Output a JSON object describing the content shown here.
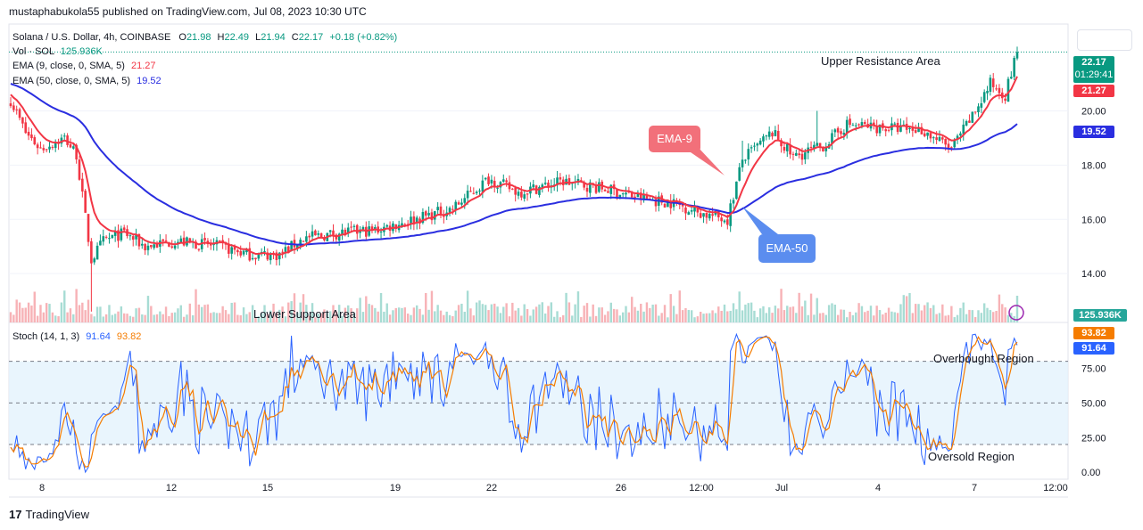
{
  "header": {
    "published_line": "mustaphabukola55 published on TradingView.com, Jul 08, 2023 10:30 UTC"
  },
  "legend": {
    "symbol": "Solana / U.S. Dollar, 4h, COINBASE",
    "o_label": "O",
    "o": "21.98",
    "h_label": "H",
    "h": "22.49",
    "l_label": "L",
    "l": "21.94",
    "c_label": "C",
    "c": "22.17",
    "change": "+0.18 (+0.82%)",
    "vol_label": "Vol · SOL",
    "vol": "125.936K",
    "ema9_label": "EMA (9, close, 0, SMA, 5)",
    "ema9": "21.27",
    "ema50_label": "EMA (50, close, 0, SMA, 5)",
    "ema50": "19.52",
    "stoch_label": "Stoch (14, 1, 3)",
    "stoch_k": "91.64",
    "stoch_d": "93.82"
  },
  "badges": {
    "price": "22.17",
    "countdown": "01:29:41",
    "ema9": "21.27",
    "ema50": "19.52",
    "volume": "125.936K",
    "stoch_d": "93.82",
    "stoch_k": "91.64"
  },
  "annotations": {
    "upper_resistance": "Upper Resistance Area",
    "lower_support": "Lower Support Area",
    "ema9_callout": "EMA-9",
    "ema50_callout": "EMA-50",
    "overbought": "Overbought Region",
    "oversold": "Oversold Region"
  },
  "footer": {
    "brand": "TradingView"
  },
  "colors": {
    "up": "#089981",
    "down": "#f23645",
    "ema9": "#f23645",
    "ema50": "#2a2ee0",
    "stoch_k": "#2962ff",
    "stoch_d": "#f57c00",
    "band": "#e3f2fd"
  },
  "chart_data": {
    "type": "candlestick",
    "price_axis": {
      "ticks": [
        14.0,
        16.0,
        18.0,
        20.0
      ],
      "labels": [
        "14.00",
        "16.00",
        "18.00",
        "20.00"
      ],
      "range": [
        12.2,
        23.2
      ]
    },
    "time_axis": {
      "labels": [
        "8",
        "12",
        "15",
        "19",
        "22",
        "26",
        "12:00",
        "Jul",
        "4",
        "7",
        "12:00"
      ]
    },
    "stoch_axis": {
      "ticks": [
        0,
        25,
        50,
        75
      ],
      "labels": [
        "0.00",
        "25.00",
        "50.00",
        "75.00"
      ],
      "range": [
        -5,
        108
      ],
      "bands": [
        20,
        80
      ]
    },
    "close_anchors": [
      [
        0,
        20.4
      ],
      [
        5,
        19.2
      ],
      [
        10,
        18.6
      ],
      [
        18,
        19.0
      ],
      [
        22,
        18.4
      ],
      [
        27,
        14.5
      ],
      [
        31,
        15.2
      ],
      [
        38,
        15.5
      ],
      [
        45,
        15.0
      ],
      [
        55,
        15.2
      ],
      [
        70,
        15.0
      ],
      [
        80,
        14.7
      ],
      [
        90,
        14.7
      ],
      [
        98,
        15.3
      ],
      [
        110,
        15.5
      ],
      [
        122,
        15.6
      ],
      [
        135,
        16.0
      ],
      [
        148,
        16.4
      ],
      [
        160,
        17.5
      ],
      [
        170,
        17.0
      ],
      [
        185,
        17.4
      ],
      [
        200,
        17.1
      ],
      [
        210,
        16.8
      ],
      [
        222,
        16.6
      ],
      [
        232,
        16.2
      ],
      [
        240,
        16.0
      ],
      [
        245,
        18.2
      ],
      [
        250,
        18.7
      ],
      [
        255,
        19.2
      ],
      [
        262,
        18.3
      ],
      [
        272,
        18.7
      ],
      [
        280,
        19.5
      ],
      [
        290,
        19.4
      ],
      [
        305,
        19.3
      ],
      [
        315,
        18.6
      ],
      [
        322,
        19.8
      ],
      [
        328,
        21.0
      ],
      [
        333,
        20.6
      ],
      [
        337,
        22.17
      ]
    ],
    "ema9_last": 21.27,
    "ema50_last": 19.52,
    "stoch_last": {
      "k": 91.64,
      "d": 93.82
    }
  }
}
